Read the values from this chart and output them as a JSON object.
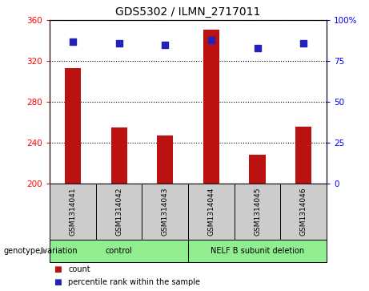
{
  "title": "GDS5302 / ILMN_2717011",
  "samples": [
    "GSM1314041",
    "GSM1314042",
    "GSM1314043",
    "GSM1314044",
    "GSM1314045",
    "GSM1314046"
  ],
  "counts": [
    313,
    255,
    247,
    351,
    228,
    256
  ],
  "percentile_ranks": [
    87,
    86,
    85,
    88,
    83,
    86
  ],
  "ylim_left": [
    200,
    360
  ],
  "ylim_right": [
    0,
    100
  ],
  "yticks_left": [
    200,
    240,
    280,
    320,
    360
  ],
  "yticks_right": [
    0,
    25,
    50,
    75,
    100
  ],
  "bar_color": "#bb1111",
  "dot_color": "#2222bb",
  "group_defs": [
    {
      "label": "control",
      "start": 0,
      "end": 2
    },
    {
      "label": "NELF B subunit deletion",
      "start": 3,
      "end": 5
    }
  ],
  "group_label_prefix": "genotype/variation",
  "legend_count_label": "count",
  "legend_percentile_label": "percentile rank within the sample",
  "bar_width": 0.35,
  "dot_size": 35,
  "sample_box_color": "#cccccc",
  "group_box_color": "#90ee90",
  "title_fontsize": 10,
  "tick_label_fontsize": 7.5
}
